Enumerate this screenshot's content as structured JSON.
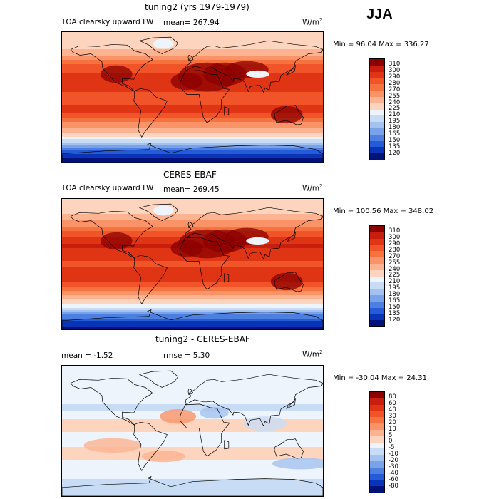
{
  "season": "JJA",
  "panels": [
    {
      "title": "tuning2 (yrs 1979-1979)",
      "variable": "TOA clearsky upward LW",
      "mean_text": "mean= 267.94",
      "rmse_text": "",
      "units": "W/m",
      "units_sup": "2",
      "minmax": "Min =  96.04 Max = 336.27"
    },
    {
      "title": "CERES-EBAF",
      "variable": "TOA clearsky upward LW",
      "mean_text": "mean= 269.45",
      "rmse_text": "",
      "units": "W/m",
      "units_sup": "2",
      "minmax": "Min = 100.56 Max = 348.02"
    },
    {
      "title": "tuning2 - CERES-EBAF",
      "variable": "",
      "mean_text": "mean =   -1.52",
      "rmse_text": "rmse =    5.30",
      "units": "W/m",
      "units_sup": "2",
      "minmax": "Min = -30.04 Max =  24.31"
    }
  ],
  "chart_data": [
    {
      "type": "heatmap",
      "title": "tuning2 (yrs 1979-1979)",
      "subtitle": "TOA clearsky upward LW",
      "units": "W/m2",
      "mean": 267.94,
      "min": 96.04,
      "max": 336.27,
      "colorbar_levels": [
        310,
        300,
        290,
        280,
        270,
        255,
        240,
        225,
        210,
        195,
        180,
        165,
        150,
        135,
        120
      ],
      "colorbar_colors": [
        "#8b0000",
        "#c81e0e",
        "#e03515",
        "#f05428",
        "#f6733f",
        "#fa9468",
        "#fcb391",
        "#fdd4bd",
        "#eef4fb",
        "#c9dcf5",
        "#a3c2f0",
        "#7aa2e8",
        "#4d7fe0",
        "#255bd6",
        "#0a34b8",
        "#00127a"
      ],
      "latitude_profile": [
        {
          "lat": 90,
          "value": 225
        },
        {
          "lat": 70,
          "value": 235
        },
        {
          "lat": 45,
          "value": 280
        },
        {
          "lat": 25,
          "value": 300
        },
        {
          "lat": 0,
          "value": 285
        },
        {
          "lat": -20,
          "value": 295
        },
        {
          "lat": -40,
          "value": 260
        },
        {
          "lat": -55,
          "value": 225
        },
        {
          "lat": -65,
          "value": 185
        },
        {
          "lat": -75,
          "value": 140
        },
        {
          "lat": -90,
          "value": 110
        }
      ]
    },
    {
      "type": "heatmap",
      "title": "CERES-EBAF",
      "subtitle": "TOA clearsky upward LW",
      "units": "W/m2",
      "mean": 269.45,
      "min": 100.56,
      "max": 348.02,
      "colorbar_levels": [
        310,
        300,
        290,
        280,
        270,
        255,
        240,
        225,
        210,
        195,
        180,
        165,
        150,
        135,
        120
      ],
      "colorbar_colors": [
        "#8b0000",
        "#c81e0e",
        "#e03515",
        "#f05428",
        "#f6733f",
        "#fa9468",
        "#fcb391",
        "#fdd4bd",
        "#eef4fb",
        "#c9dcf5",
        "#a3c2f0",
        "#7aa2e8",
        "#4d7fe0",
        "#255bd6",
        "#0a34b8",
        "#00127a"
      ],
      "latitude_profile": [
        {
          "lat": 90,
          "value": 228
        },
        {
          "lat": 70,
          "value": 240
        },
        {
          "lat": 45,
          "value": 282
        },
        {
          "lat": 25,
          "value": 302
        },
        {
          "lat": 0,
          "value": 288
        },
        {
          "lat": -20,
          "value": 297
        },
        {
          "lat": -40,
          "value": 262
        },
        {
          "lat": -55,
          "value": 228
        },
        {
          "lat": -65,
          "value": 190
        },
        {
          "lat": -75,
          "value": 145
        },
        {
          "lat": -90,
          "value": 112
        }
      ]
    },
    {
      "type": "heatmap",
      "title": "tuning2 - CERES-EBAF",
      "units": "W/m2",
      "mean": -1.52,
      "rmse": 5.3,
      "min": -30.04,
      "max": 24.31,
      "colorbar_levels": [
        80,
        60,
        40,
        30,
        20,
        10,
        5,
        0,
        -5,
        -10,
        -20,
        -30,
        -40,
        -60,
        -80
      ],
      "colorbar_colors": [
        "#8b0000",
        "#c81e0e",
        "#e03515",
        "#f05428",
        "#f6733f",
        "#fa9468",
        "#fcb391",
        "#fdd4bd",
        "#eef4fb",
        "#c9dcf5",
        "#a3c2f0",
        "#7aa2e8",
        "#4d7fe0",
        "#255bd6",
        "#0a34b8",
        "#00127a"
      ],
      "latitude_profile": [
        {
          "lat": 90,
          "value": -3
        },
        {
          "lat": 60,
          "value": -2
        },
        {
          "lat": 30,
          "value": -6
        },
        {
          "lat": 10,
          "value": 3
        },
        {
          "lat": -10,
          "value": -3
        },
        {
          "lat": -30,
          "value": 2
        },
        {
          "lat": -60,
          "value": -4
        },
        {
          "lat": -90,
          "value": -8
        }
      ]
    }
  ]
}
